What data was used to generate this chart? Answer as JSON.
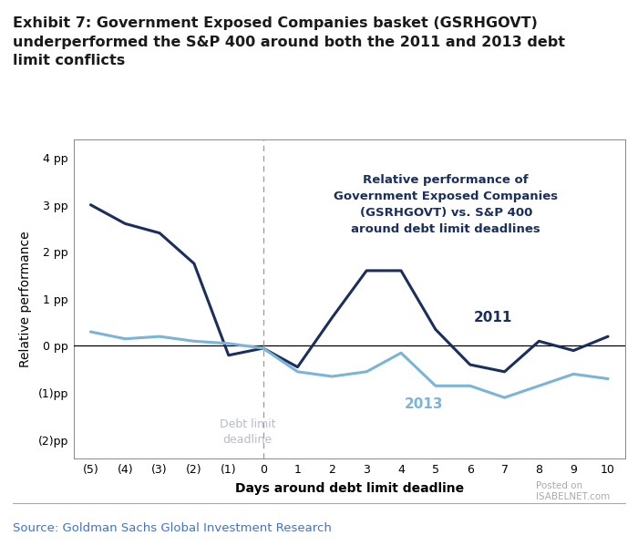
{
  "title": "Exhibit 7: Government Exposed Companies basket (GSRHGOVT)\nunderperformed the S&P 400 around both the 2011 and 2013 debt\nlimit conflicts",
  "xlabel": "Days around debt limit deadline",
  "ylabel": "Relative performance",
  "source": "Source: Goldman Sachs Global Investment Research",
  "watermark_line1": "Posted on",
  "watermark_line2": "ISABELNET.com",
  "x_ticks": [
    -5,
    -4,
    -3,
    -2,
    -1,
    0,
    1,
    2,
    3,
    4,
    5,
    6,
    7,
    8,
    9,
    10
  ],
  "x_tick_labels": [
    "(5)",
    "(4)",
    "(3)",
    "(2)",
    "(1)",
    "0",
    "1",
    "2",
    "3",
    "4",
    "5",
    "6",
    "7",
    "8",
    "9",
    "10"
  ],
  "y_ticks": [
    -2,
    -1,
    0,
    1,
    2,
    3,
    4
  ],
  "y_tick_labels": [
    "(2)pp",
    "(1)pp",
    "0 pp",
    "1 pp",
    "2 pp",
    "3 pp",
    "4 pp"
  ],
  "ylim": [
    -2.4,
    4.4
  ],
  "xlim": [
    -5.5,
    10.5
  ],
  "line2011_x": [
    -5,
    -4,
    -3,
    -2,
    -1,
    0,
    1,
    2,
    3,
    4,
    5,
    6,
    7,
    8,
    9,
    10
  ],
  "line2011_y": [
    3.0,
    2.6,
    2.4,
    1.75,
    -0.2,
    -0.05,
    -0.45,
    0.6,
    1.6,
    1.6,
    0.35,
    -0.4,
    -0.55,
    0.1,
    -0.1,
    0.2
  ],
  "line2013_x": [
    -5,
    -4,
    -3,
    -2,
    -1,
    0,
    1,
    2,
    3,
    4,
    5,
    6,
    7,
    8,
    9,
    10
  ],
  "line2013_y": [
    0.3,
    0.15,
    0.2,
    0.1,
    0.05,
    -0.05,
    -0.55,
    -0.65,
    -0.55,
    -0.15,
    -0.85,
    -0.85,
    -1.1,
    -0.85,
    -0.6,
    -0.7
  ],
  "color_2011": "#1a2f5e",
  "color_2013": "#7ab4d8",
  "color_deadline_text": "#b8bcc8",
  "annotation_text": "Relative performance of\nGovernment Exposed Companies\n(GSRHGOVT) vs. S&P 400\naround debt limit deadlines",
  "label_2011": "2011",
  "label_2013": "2013",
  "deadline_label": "Debt limit\ndeadline",
  "background_color": "#ffffff",
  "source_color": "#4472c4",
  "watermark_color": "#aaaaaa",
  "annotation_color": "#1a2f5e"
}
